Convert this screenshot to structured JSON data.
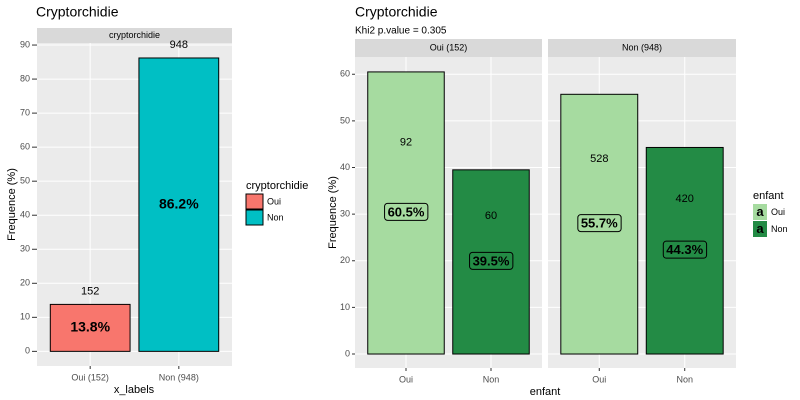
{
  "chart_data": [
    {
      "type": "bar",
      "title": "Cryptorchidie",
      "x_label": "x_labels",
      "y_label": "Frequence (%)",
      "categories": [
        "Oui (152)",
        "Non (948)"
      ],
      "colors": [
        "#F8766D",
        "#00BFC4"
      ],
      "facets": [
        {
          "label": "cryptorchidie",
          "values": [
            13.8,
            86.2
          ],
          "value_labels": [
            "13.8%",
            "86.2%"
          ],
          "counts": [
            152,
            948
          ]
        }
      ],
      "ylim": [
        -4.3,
        90.6
      ],
      "yticks": [
        0,
        10,
        20,
        30,
        40,
        50,
        60,
        70,
        80,
        90
      ],
      "grid": true,
      "legend": {
        "title": "cryptorchidie",
        "entries": [
          "Oui",
          "Non"
        ],
        "position": "right"
      }
    },
    {
      "type": "bar",
      "title": "Cryptorchidie",
      "subtitle": "Khi2 p.value = 0.305",
      "x_label": "enfant",
      "y_label": "Frequence (%)",
      "categories": [
        "Oui",
        "Non"
      ],
      "colors": [
        "#A6DBA0",
        "#238B45"
      ],
      "facets": [
        {
          "label": "Oui (152)",
          "values": [
            60.5,
            39.5
          ],
          "value_labels": [
            "60.5%",
            "39.5%"
          ],
          "counts": [
            92,
            60
          ]
        },
        {
          "label": "Non (948)",
          "values": [
            55.7,
            44.3
          ],
          "value_labels": [
            "55.7%",
            "44.3%"
          ],
          "counts": [
            528,
            420
          ]
        }
      ],
      "ylim": [
        -3.0,
        63.7
      ],
      "yticks": [
        0,
        10,
        20,
        30,
        40,
        50,
        60
      ],
      "grid": true,
      "legend": {
        "title": "enfant",
        "entries": [
          "Oui",
          "Non"
        ],
        "glyph": "a",
        "position": "right"
      }
    }
  ]
}
